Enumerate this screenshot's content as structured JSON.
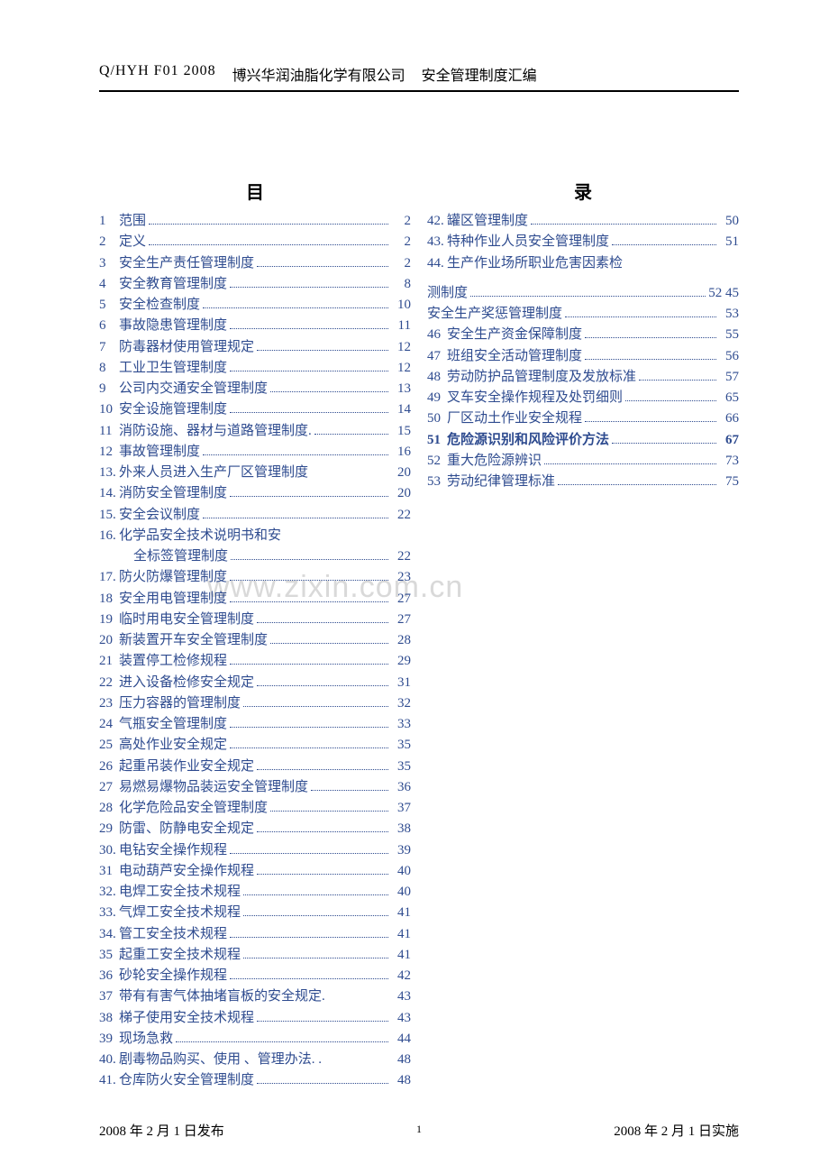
{
  "header": {
    "code": "Q/HYH   F01 2008",
    "company": "博兴华润油脂化学有限公司",
    "doc": "安全管理制度汇编"
  },
  "watermark": "www.zixin.com.cn",
  "column_headers": {
    "left": "目",
    "right": "录"
  },
  "toc_left": [
    {
      "n": "1",
      "t": "范围",
      "p": "2"
    },
    {
      "n": "2",
      "t": "定义",
      "p": "2"
    },
    {
      "n": "3",
      "t": "安全生产责任管理制度",
      "p": "2"
    },
    {
      "n": "4",
      "t": "安全教育管理制度",
      "p": "8"
    },
    {
      "n": "5",
      "t": "安全检查制度",
      "p": "10"
    },
    {
      "n": "6",
      "t": "事故隐患管理制度",
      "p": "11"
    },
    {
      "n": "7",
      "t": "防毒器材使用管理规定",
      "p": "12"
    },
    {
      "n": "8",
      "t": "工业卫生管理制度",
      "p": "12"
    },
    {
      "n": "9",
      "t": "公司内交通安全管理制度",
      "p": "13"
    },
    {
      "n": "10",
      "t": "安全设施管理制度",
      "p": "14"
    },
    {
      "n": "11",
      "t": "消防设施、器材与道路管理制度.",
      "p": "15",
      "nodots": false
    },
    {
      "n": "12",
      "t": "事故管理制度",
      "p": "16"
    },
    {
      "n": "13.",
      "t": " 外来人员进入生产厂区管理制度",
      "p": "20",
      "nodots": true
    },
    {
      "n": "14.",
      "t": "消防安全管理制度",
      "p": "20"
    },
    {
      "n": "15.",
      "t": "安全会议制度",
      "p": "22"
    },
    {
      "n": "16.",
      "t": "化学品安全技术说明书和安",
      "p": "",
      "nodots": true
    },
    {
      "n": "",
      "t": "全标签管理制度",
      "p": "22",
      "indent": true
    },
    {
      "n": "17.",
      "t": "  防火防爆管理制度",
      "p": "23"
    },
    {
      "n": "18",
      "t": "安全用电管理制度",
      "p": "27"
    },
    {
      "n": "19",
      "t": "临时用电安全管理制度",
      "p": "27"
    },
    {
      "n": "20",
      "t": "新装置开车安全管理制度",
      "p": "28"
    },
    {
      "n": "21",
      "t": "装置停工检修规程",
      "p": "29"
    },
    {
      "n": "22",
      "t": "进入设备检修安全规定",
      "p": "31"
    },
    {
      "n": "23",
      "t": "压力容器的管理制度",
      "p": "32"
    },
    {
      "n": "24",
      "t": "气瓶安全管理制度",
      "p": "33"
    },
    {
      "n": "25",
      "t": "高处作业安全规定",
      "p": "35"
    },
    {
      "n": "26",
      "t": "起重吊装作业安全规定",
      "p": "35"
    },
    {
      "n": "27",
      "t": "易燃易爆物品装运安全管理制度",
      "p": "36"
    },
    {
      "n": "28",
      "t": "化学危险品安全管理制度",
      "p": "37"
    },
    {
      "n": "29",
      "t": "防雷、防静电安全规定",
      "p": "38"
    },
    {
      "n": "30.",
      "t": "电钻安全操作规程",
      "p": "39"
    },
    {
      "n": "31",
      "t": "电动葫芦安全操作规程",
      "p": "40"
    },
    {
      "n": "32.",
      "t": "电焊工安全技术规程",
      "p": "40"
    },
    {
      "n": "33.",
      "t": "气焊工安全技术规程",
      "p": "41"
    },
    {
      "n": "34.",
      "t": "管工安全技术规程",
      "p": "41"
    },
    {
      "n": "35",
      "t": "起重工安全技术规程",
      "p": "41"
    },
    {
      "n": "36",
      "t": "砂轮安全操作规程",
      "p": "42"
    },
    {
      "n": "37",
      "t": "带有有害气体抽堵盲板的安全规定.",
      "p": "43",
      "nodots": true
    },
    {
      "n": "38",
      "t": "梯子使用安全技术规程",
      "p": "43"
    },
    {
      "n": "39",
      "t": "现场急救",
      "p": "44"
    },
    {
      "n": "40.",
      "t": " 剧毒物品购买、使用 、管理办法. .",
      "p": "48",
      "nodots": true
    },
    {
      "n": "41.",
      "t": "仓库防火安全管理制度",
      "p": "48"
    }
  ],
  "toc_right": [
    {
      "n": "42.",
      "t": "罐区管理制度",
      "p": "50"
    },
    {
      "n": "43.",
      "t": "特种作业人员安全管理制度",
      "p": "51"
    },
    {
      "n": "44.",
      "t": "生产作业场所职业危害因素检",
      "p": "",
      "nodots": true,
      "gap_after": true
    },
    {
      "n": "",
      "t": "测制度",
      "p": "52   45"
    },
    {
      "n": "",
      "t": "安全生产奖惩管理制度",
      "p": "53"
    },
    {
      "n": "46",
      "t": "安全生产资金保障制度",
      "p": "55"
    },
    {
      "n": "47",
      "t": "班组安全活动管理制度",
      "p": "56"
    },
    {
      "n": "48",
      "t": "劳动防护品管理制度及发放标准",
      "p": "57"
    },
    {
      "n": "49",
      "t": "叉车安全操作规程及处罚细则",
      "p": "65"
    },
    {
      "n": "50",
      "t": "厂区动土作业安全规程",
      "p": "66"
    },
    {
      "n": "51",
      "t": "危险源识别和风险评价方法",
      "p": "67",
      "bold": true
    },
    {
      "n": "52",
      "t": "重大危险源辨识",
      "p": "73"
    },
    {
      "n": "53",
      "t": "劳动纪律管理标准",
      "p": "75"
    }
  ],
  "footer": {
    "left": "2008 年 2 月 1 日发布",
    "page": "1",
    "right": "2008 年 2 月 1 日实施"
  },
  "colors": {
    "link": "#2e4b8f",
    "text": "#000000",
    "watermark": "#d9d9d9",
    "background": "#ffffff"
  }
}
